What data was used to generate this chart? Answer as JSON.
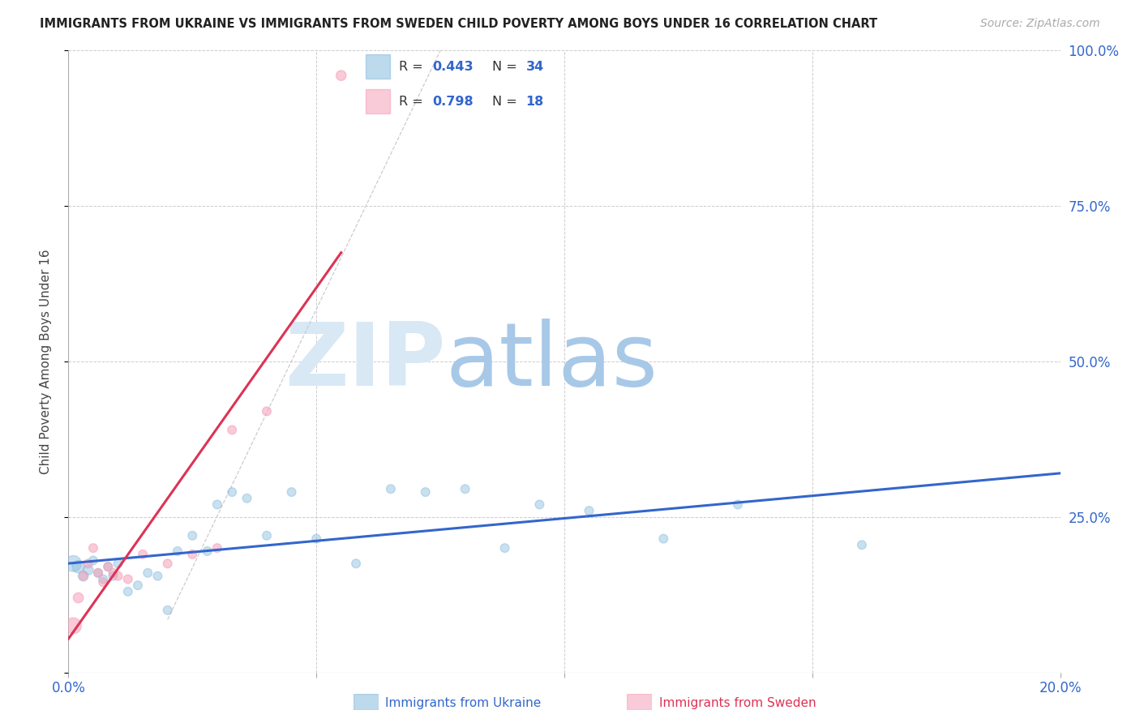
{
  "title": "IMMIGRANTS FROM UKRAINE VS IMMIGRANTS FROM SWEDEN CHILD POVERTY AMONG BOYS UNDER 16 CORRELATION CHART",
  "source": "Source: ZipAtlas.com",
  "ylabel": "Child Poverty Among Boys Under 16",
  "xlim": [
    0.0,
    0.2
  ],
  "ylim": [
    0.0,
    1.0
  ],
  "xticks": [
    0.0,
    0.05,
    0.1,
    0.15,
    0.2
  ],
  "xticklabels": [
    "0.0%",
    "",
    "",
    "",
    "20.0%"
  ],
  "yticks": [
    0.0,
    0.25,
    0.5,
    0.75,
    1.0
  ],
  "yticklabels_right": [
    "",
    "25.0%",
    "50.0%",
    "75.0%",
    "100.0%"
  ],
  "ukraine_color": "#88bbdd",
  "sweden_color": "#f5a0b8",
  "ukraine_line_color": "#3366cc",
  "sweden_line_color": "#dd3355",
  "ukraine_R": 0.443,
  "ukraine_N": 34,
  "sweden_R": 0.798,
  "sweden_N": 18,
  "ukraine_x": [
    0.001,
    0.002,
    0.003,
    0.004,
    0.005,
    0.006,
    0.007,
    0.008,
    0.009,
    0.01,
    0.012,
    0.014,
    0.016,
    0.018,
    0.02,
    0.022,
    0.025,
    0.028,
    0.03,
    0.033,
    0.036,
    0.04,
    0.045,
    0.05,
    0.058,
    0.065,
    0.072,
    0.08,
    0.088,
    0.095,
    0.105,
    0.12,
    0.135,
    0.16
  ],
  "ukraine_y": [
    0.175,
    0.17,
    0.155,
    0.165,
    0.18,
    0.16,
    0.15,
    0.17,
    0.155,
    0.175,
    0.13,
    0.14,
    0.16,
    0.155,
    0.1,
    0.195,
    0.22,
    0.195,
    0.27,
    0.29,
    0.28,
    0.22,
    0.29,
    0.215,
    0.175,
    0.295,
    0.29,
    0.295,
    0.2,
    0.27,
    0.26,
    0.215,
    0.27,
    0.205
  ],
  "ukraine_sizes": [
    200,
    120,
    80,
    80,
    60,
    60,
    60,
    60,
    60,
    60,
    60,
    60,
    60,
    60,
    60,
    60,
    60,
    60,
    60,
    60,
    60,
    60,
    60,
    60,
    60,
    60,
    60,
    60,
    60,
    60,
    60,
    60,
    60,
    60
  ],
  "sweden_x": [
    0.001,
    0.002,
    0.003,
    0.004,
    0.005,
    0.006,
    0.007,
    0.008,
    0.009,
    0.01,
    0.012,
    0.015,
    0.02,
    0.025,
    0.03,
    0.033,
    0.04,
    0.055
  ],
  "sweden_y": [
    0.075,
    0.12,
    0.155,
    0.175,
    0.2,
    0.16,
    0.145,
    0.17,
    0.16,
    0.155,
    0.15,
    0.19,
    0.175,
    0.19,
    0.2,
    0.39,
    0.42,
    0.96
  ],
  "sweden_sizes": [
    200,
    80,
    60,
    60,
    60,
    60,
    60,
    60,
    60,
    60,
    60,
    60,
    60,
    60,
    60,
    60,
    60,
    80
  ],
  "ref_line_x": [
    0.02,
    0.075
  ],
  "ref_line_y": [
    0.085,
    1.0
  ],
  "watermark_zip": "ZIP",
  "watermark_atlas": "atlas",
  "watermark_color_zip": "#d8e8f5",
  "watermark_color_atlas": "#a8c8e8",
  "background_color": "#ffffff",
  "grid_color": "#cccccc",
  "text_color_blue": "#3366cc",
  "text_color_pink": "#dd3355",
  "legend_border_color": "#dddddd",
  "bottom_legend_ukraine": "Immigrants from Ukraine",
  "bottom_legend_sweden": "Immigrants from Sweden"
}
